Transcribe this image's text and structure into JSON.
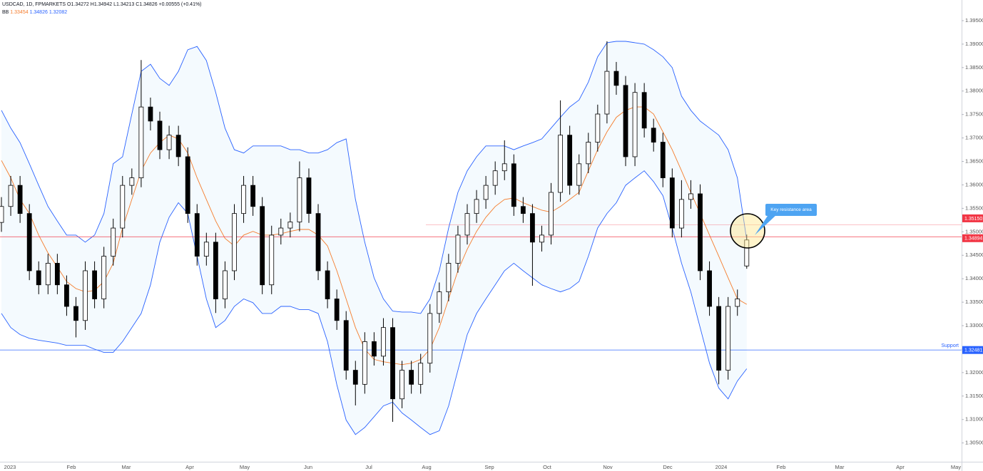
{
  "chart_data": {
    "type": "candlestick",
    "header": {
      "symbol": "USDCAD, 1D, FPMARKETS",
      "o": "O",
      "h": "H",
      "l": "L",
      "c": "C",
      "change": "+0.00555 (+0.41%)",
      "bb": "BB"
    },
    "ylim": [
      1.301,
      1.3994
    ],
    "yticks": [
      {
        "value": 1.305,
        "label": "1.30500"
      },
      {
        "value": 1.31,
        "label": "1.31000"
      },
      {
        "value": 1.315,
        "label": "1.31500"
      },
      {
        "value": 1.32,
        "label": "1.32000"
      },
      {
        "value": 1.325,
        "label": "1.32500"
      },
      {
        "value": 1.33,
        "label": "1.33000"
      },
      {
        "value": 1.335,
        "label": "1.33500"
      },
      {
        "value": 1.34,
        "label": "1.34000"
      },
      {
        "value": 1.345,
        "label": "1.34500"
      },
      {
        "value": 1.35,
        "label": "1.35000"
      },
      {
        "value": 1.355,
        "label": "1.35500"
      },
      {
        "value": 1.36,
        "label": "1.36000"
      },
      {
        "value": 1.365,
        "label": "1.36500"
      },
      {
        "value": 1.37,
        "label": "1.37000"
      },
      {
        "value": 1.375,
        "label": "1.37500"
      },
      {
        "value": 1.38,
        "label": "1.38000"
      },
      {
        "value": 1.385,
        "label": "1.38500"
      },
      {
        "value": 1.39,
        "label": "1.39000"
      },
      {
        "value": 1.395,
        "label": "1.39500"
      }
    ],
    "xlabels": [
      "2023",
      "Feb",
      "Mar",
      "Apr",
      "May",
      "Jun",
      "Jul",
      "Aug",
      "Sep",
      "Oct",
      "Nov",
      "Dec",
      "2024",
      "Feb",
      "Mar",
      "Apr",
      "May"
    ],
    "up_color": "#ffffff",
    "down_color": "#000000",
    "candles": {
      "open": [
        1.352,
        1.3554,
        1.3599,
        1.3539,
        1.3417,
        1.3387,
        1.3433,
        1.3387,
        1.3341,
        1.3311,
        1.3417,
        1.3357,
        1.3448,
        1.3508,
        1.3599,
        1.3615,
        1.3766,
        1.3736,
        1.3675,
        1.3706,
        1.366,
        1.3539,
        1.3448,
        1.3478,
        1.3357,
        1.3417,
        1.3539,
        1.3599,
        1.3554,
        1.3387,
        1.3493,
        1.3508,
        1.3521,
        1.3615,
        1.3539,
        1.3417,
        1.3357,
        1.3311,
        1.3205,
        1.3175,
        1.3266,
        1.3235,
        1.3296,
        1.3144,
        1.3205,
        1.3175,
        1.322,
        1.3326,
        1.3372,
        1.3433,
        1.3493,
        1.3539,
        1.3569,
        1.3599,
        1.363,
        1.3645,
        1.3554,
        1.3539,
        1.3478,
        1.3493,
        1.3584,
        1.3706,
        1.3599,
        1.3645,
        1.3691,
        1.3751,
        1.3842,
        1.3812,
        1.366,
        1.3797,
        1.3721,
        1.3691,
        1.3615,
        1.3508,
        1.3569,
        1.3581,
        1.3417,
        1.3341,
        1.3205,
        1.3341,
        1.34272
      ],
      "high": [
        1.3574,
        1.3619,
        1.3619,
        1.3559,
        1.3437,
        1.3453,
        1.3453,
        1.3407,
        1.3361,
        1.3437,
        1.3437,
        1.3468,
        1.3528,
        1.3619,
        1.3635,
        1.3866,
        1.3786,
        1.3756,
        1.3726,
        1.3726,
        1.368,
        1.3559,
        1.3498,
        1.3498,
        1.3437,
        1.3559,
        1.3619,
        1.3619,
        1.3574,
        1.3513,
        1.3528,
        1.3541,
        1.365,
        1.3635,
        1.3559,
        1.3437,
        1.3377,
        1.3331,
        1.3225,
        1.3286,
        1.3286,
        1.3316,
        1.3316,
        1.3225,
        1.3225,
        1.324,
        1.3346,
        1.3392,
        1.3453,
        1.3513,
        1.3559,
        1.3589,
        1.3619,
        1.365,
        1.3695,
        1.3665,
        1.3574,
        1.3559,
        1.3513,
        1.3604,
        1.378,
        1.3726,
        1.3665,
        1.3711,
        1.3771,
        1.3906,
        1.3862,
        1.3832,
        1.3817,
        1.3817,
        1.3741,
        1.3711,
        1.3635,
        1.361,
        1.361,
        1.3601,
        1.3437,
        1.3361,
        1.3361,
        1.3377,
        1.34942
      ],
      "low": [
        1.35,
        1.3534,
        1.3519,
        1.3397,
        1.3367,
        1.3367,
        1.3367,
        1.3321,
        1.3275,
        1.3291,
        1.3337,
        1.3337,
        1.3428,
        1.3488,
        1.3579,
        1.3595,
        1.3716,
        1.3655,
        1.3655,
        1.364,
        1.3519,
        1.3428,
        1.3428,
        1.3327,
        1.3337,
        1.3397,
        1.3519,
        1.3534,
        1.3367,
        1.3367,
        1.3473,
        1.3488,
        1.3501,
        1.3519,
        1.3397,
        1.3337,
        1.3291,
        1.3185,
        1.313,
        1.3155,
        1.3215,
        1.3215,
        1.3095,
        1.3124,
        1.3155,
        1.3155,
        1.32,
        1.3306,
        1.3352,
        1.3413,
        1.3473,
        1.3519,
        1.3549,
        1.3579,
        1.361,
        1.3534,
        1.3519,
        1.3385,
        1.3458,
        1.3473,
        1.3564,
        1.3579,
        1.3579,
        1.3625,
        1.3671,
        1.3731,
        1.3792,
        1.364,
        1.364,
        1.3701,
        1.3671,
        1.3595,
        1.3488,
        1.3488,
        1.3549,
        1.3397,
        1.3321,
        1.3175,
        1.3185,
        1.3321,
        1.34213
      ],
      "close": [
        1.3554,
        1.3599,
        1.3539,
        1.3417,
        1.3387,
        1.3433,
        1.3387,
        1.3341,
        1.3311,
        1.3417,
        1.3357,
        1.3448,
        1.3508,
        1.3599,
        1.3615,
        1.3766,
        1.3736,
        1.3675,
        1.3706,
        1.366,
        1.3539,
        1.3448,
        1.3478,
        1.3357,
        1.3417,
        1.3539,
        1.3599,
        1.3554,
        1.3387,
        1.3493,
        1.3508,
        1.3521,
        1.3615,
        1.3539,
        1.3417,
        1.3357,
        1.3311,
        1.3205,
        1.3175,
        1.3266,
        1.3235,
        1.3296,
        1.3144,
        1.3205,
        1.3175,
        1.322,
        1.3326,
        1.3372,
        1.3433,
        1.3493,
        1.3539,
        1.3569,
        1.3599,
        1.363,
        1.3645,
        1.3554,
        1.3539,
        1.3478,
        1.3493,
        1.3584,
        1.3706,
        1.3599,
        1.3645,
        1.3691,
        1.3751,
        1.3842,
        1.3812,
        1.366,
        1.3797,
        1.3721,
        1.3691,
        1.3615,
        1.3508,
        1.3569,
        1.3581,
        1.3417,
        1.3341,
        1.3205,
        1.3341,
        1.3357,
        1.34826
      ]
    },
    "bb_basis": {
      "color": "#f57c2c",
      "values": [
        1.3652,
        1.3615,
        1.3569,
        1.3539,
        1.3493,
        1.3455,
        1.3425,
        1.3394,
        1.3379,
        1.3372,
        1.3375,
        1.3394,
        1.3433,
        1.3508,
        1.3569,
        1.363,
        1.3668,
        1.369,
        1.3706,
        1.3698,
        1.3668,
        1.3615,
        1.3569,
        1.3523,
        1.3486,
        1.347,
        1.3493,
        1.3501,
        1.3493,
        1.3493,
        1.3496,
        1.3501,
        1.3505,
        1.3505,
        1.3493,
        1.347,
        1.3417,
        1.3357,
        1.3296,
        1.325,
        1.3228,
        1.3223,
        1.322,
        1.3217,
        1.322,
        1.3228,
        1.325,
        1.3296,
        1.3357,
        1.3417,
        1.3463,
        1.3501,
        1.3531,
        1.3554,
        1.3569,
        1.3572,
        1.3562,
        1.3554,
        1.3546,
        1.3542,
        1.3554,
        1.3569,
        1.3584,
        1.363,
        1.3675,
        1.3713,
        1.3744,
        1.3759,
        1.3766,
        1.3766,
        1.3751,
        1.3713,
        1.3675,
        1.363,
        1.3584,
        1.3539,
        1.3493,
        1.3448,
        1.3402,
        1.3357,
        1.33454
      ]
    },
    "bb_upper": {
      "color": "#2962ff",
      "values": [
        1.3759,
        1.3721,
        1.369,
        1.3645,
        1.3599,
        1.3554,
        1.3523,
        1.3493,
        1.3493,
        1.3478,
        1.3493,
        1.3539,
        1.3645,
        1.366,
        1.3751,
        1.3842,
        1.3857,
        1.3827,
        1.3812,
        1.3842,
        1.3888,
        1.3895,
        1.3865,
        1.3797,
        1.3721,
        1.3675,
        1.3668,
        1.3683,
        1.3683,
        1.3683,
        1.3683,
        1.3675,
        1.3675,
        1.3668,
        1.3668,
        1.3675,
        1.369,
        1.3698,
        1.3569,
        1.3478,
        1.3402,
        1.3357,
        1.3331,
        1.3329,
        1.3329,
        1.3326,
        1.3357,
        1.3417,
        1.3508,
        1.3584,
        1.363,
        1.366,
        1.3683,
        1.3683,
        1.3683,
        1.3675,
        1.3683,
        1.369,
        1.3698,
        1.3721,
        1.3744,
        1.3766,
        1.3781,
        1.3819,
        1.3873,
        1.3903,
        1.3906,
        1.3906,
        1.3903,
        1.39,
        1.3888,
        1.3873,
        1.385,
        1.3789,
        1.3759,
        1.3736,
        1.3721,
        1.3706,
        1.3675,
        1.3615,
        1.34826
      ]
    },
    "bb_lower": {
      "color": "#2962ff",
      "values": [
        1.3326,
        1.3296,
        1.3281,
        1.3273,
        1.3269,
        1.3266,
        1.3263,
        1.3258,
        1.3258,
        1.3258,
        1.325,
        1.3243,
        1.3243,
        1.3266,
        1.3296,
        1.3326,
        1.3387,
        1.3478,
        1.3531,
        1.3562,
        1.3539,
        1.3448,
        1.3357,
        1.3296,
        1.3311,
        1.3341,
        1.3357,
        1.3349,
        1.3326,
        1.3326,
        1.3341,
        1.3341,
        1.3334,
        1.3334,
        1.3326,
        1.3266,
        1.3174,
        1.3099,
        1.3068,
        1.3083,
        1.3106,
        1.3129,
        1.3137,
        1.3114,
        1.3099,
        1.3083,
        1.3068,
        1.3076,
        1.3129,
        1.3205,
        1.3281,
        1.3326,
        1.3357,
        1.3387,
        1.3417,
        1.3433,
        1.3417,
        1.3402,
        1.3387,
        1.3379,
        1.3372,
        1.3379,
        1.3394,
        1.3448,
        1.3508,
        1.3539,
        1.3562,
        1.3599,
        1.3615,
        1.363,
        1.3607,
        1.3577,
        1.3508,
        1.3433,
        1.3372,
        1.3296,
        1.322,
        1.3167,
        1.3144,
        1.3182,
        1.32082
      ]
    },
    "levels": [
      {
        "value": 1.3515,
        "label": "1.35150",
        "color": "#f23645"
      },
      {
        "value": 1.34894,
        "label": "1.34894",
        "color": "#f23645"
      },
      {
        "value": 1.32481,
        "label": "1.32481",
        "color": "#2962ff",
        "text": "Support"
      }
    ],
    "annotation": "Key resistance area"
  }
}
